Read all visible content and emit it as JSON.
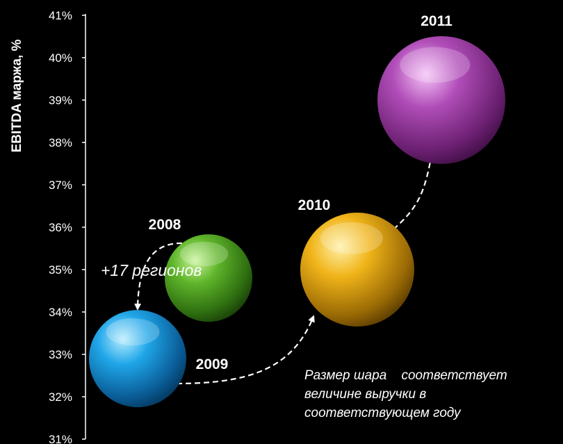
{
  "chart_data": {
    "type": "scatter",
    "ylabel": "EBITDA маржа, %",
    "y_ticks": [
      "31%",
      "32%",
      "33%",
      "34%",
      "35%",
      "36%",
      "37%",
      "38%",
      "39%",
      "40%",
      "41%"
    ],
    "ylim": [
      31,
      41
    ],
    "points": [
      {
        "label": "2008",
        "y": 34.8,
        "color": "#4a9e1e"
      },
      {
        "label": "2009",
        "y": 32.9,
        "color": "#1b8fd0"
      },
      {
        "label": "2010",
        "y": 35.0,
        "color": "#d99c0c"
      },
      {
        "label": "2011",
        "y": 39.0,
        "color": "#9b3aa0"
      }
    ],
    "annotations": {
      "regions": "+17 регионов",
      "note_line1": "Размер шара    соответствует",
      "note_line2": "величине выручки в",
      "note_line3": "соответствующем году"
    }
  }
}
